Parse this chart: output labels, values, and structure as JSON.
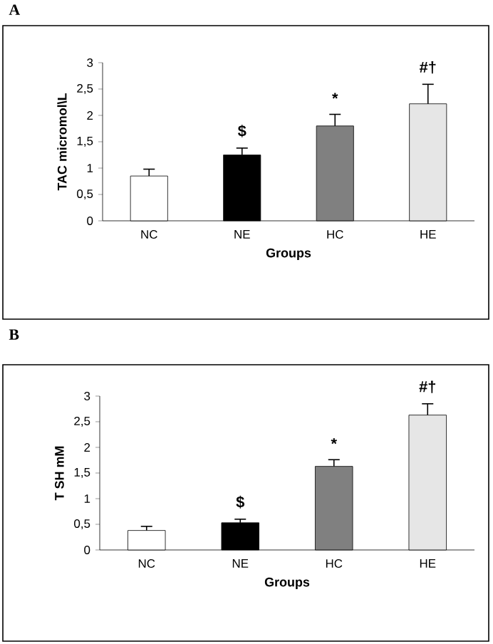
{
  "chart_data": [
    {
      "type": "bar",
      "title": "A",
      "xlabel": "Groups",
      "ylabel": "TAC micromol\\L",
      "categories": [
        "NC",
        "NE",
        "HC",
        "HE"
      ],
      "values": [
        0.85,
        1.25,
        1.8,
        2.22
      ],
      "errors": [
        0.13,
        0.13,
        0.22,
        0.37
      ],
      "colors": [
        "#ffffff",
        "#000000",
        "#808080",
        "#e6e6e6"
      ],
      "ylim": [
        0,
        3
      ],
      "yticks": [
        0,
        {
          "value": 0.5,
          "label": "0,5"
        },
        1,
        {
          "value": 1.5,
          "label": "1,5"
        },
        2,
        {
          "value": 2.5,
          "label": "2,5"
        },
        3
      ],
      "annotations": [
        {
          "text": "$",
          "x": "NE",
          "y": 1.38
        },
        {
          "text": "*",
          "x": "HC",
          "y": 2.02
        },
        {
          "text": "#†",
          "x": "HE",
          "y": 2.59
        }
      ]
    },
    {
      "type": "bar",
      "title": "B",
      "xlabel": "Groups",
      "ylabel": "T SH mM",
      "categories": [
        "NC",
        "NE",
        "HC",
        "HE"
      ],
      "values": [
        0.38,
        0.53,
        1.63,
        2.63
      ],
      "errors": [
        0.08,
        0.07,
        0.13,
        0.22
      ],
      "colors": [
        "#ffffff",
        "#000000",
        "#808080",
        "#e6e6e6"
      ],
      "ylim": [
        0,
        3
      ],
      "yticks": [
        0,
        {
          "value": 0.5,
          "label": "0,5"
        },
        1,
        {
          "value": 1.5,
          "label": "1,5"
        },
        2,
        {
          "value": 2.5,
          "label": "2,5"
        },
        3
      ],
      "annotations": [
        {
          "text": "$",
          "x": "NE",
          "y": 0.6
        },
        {
          "text": "*",
          "x": "HC",
          "y": 1.76
        },
        {
          "text": "#†",
          "x": "HE",
          "y": 2.85
        }
      ]
    }
  ]
}
